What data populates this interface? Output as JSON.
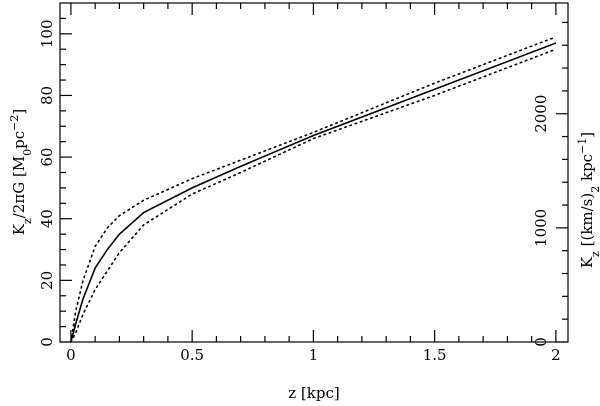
{
  "chart_data": {
    "type": "line",
    "xlabel": "z [kpc]",
    "ylabel": [
      "K",
      "z",
      "/2πG   [M",
      "0",
      "pc",
      "−2",
      "]"
    ],
    "y2label": [
      "K",
      "z",
      " [(km/s)",
      "2",
      " kpc",
      "−1",
      "]"
    ],
    "x": [
      0,
      0.02,
      0.05,
      0.1,
      0.15,
      0.2,
      0.3,
      0.5,
      0.7,
      1,
      1.5,
      2
    ],
    "series": [
      {
        "color": "#000000",
        "style": "solid",
        "values": [
          0,
          6,
          14,
          24,
          30,
          35,
          42,
          50,
          57,
          67,
          82,
          97
        ]
      },
      {
        "color": "#000000",
        "style": "dotted",
        "values": [
          0,
          10,
          20,
          31,
          37,
          41,
          46,
          53,
          59,
          68,
          84,
          99
        ]
      },
      {
        "color": "#000000",
        "style": "dotted",
        "values": [
          0,
          3,
          9,
          17,
          23,
          29,
          38,
          48,
          55,
          66,
          80,
          95
        ]
      }
    ],
    "xlim": [
      -0.045,
      2.05
    ],
    "xticks": [
      0,
      0.5,
      1,
      1.5,
      2
    ],
    "xminorticks": [
      0.1,
      0.2,
      0.3,
      0.4,
      0.6,
      0.7,
      0.8,
      0.9,
      1.1,
      1.2,
      1.3,
      1.4,
      1.6,
      1.7,
      1.8,
      1.9
    ],
    "ylim": [
      0,
      110
    ],
    "yticks": [
      0,
      20,
      40,
      60,
      80,
      100
    ],
    "yminorticks": [
      5,
      10,
      15,
      25,
      30,
      35,
      45,
      50,
      55,
      65,
      70,
      75,
      85,
      90,
      95,
      105
    ],
    "y2lim": [
      0,
      2970
    ],
    "y2ticks": [
      0,
      1000,
      2000
    ],
    "y2minorticks": [
      200,
      400,
      600,
      800,
      1200,
      1400,
      1600,
      1800,
      2200,
      2400,
      2600,
      2800
    ]
  }
}
